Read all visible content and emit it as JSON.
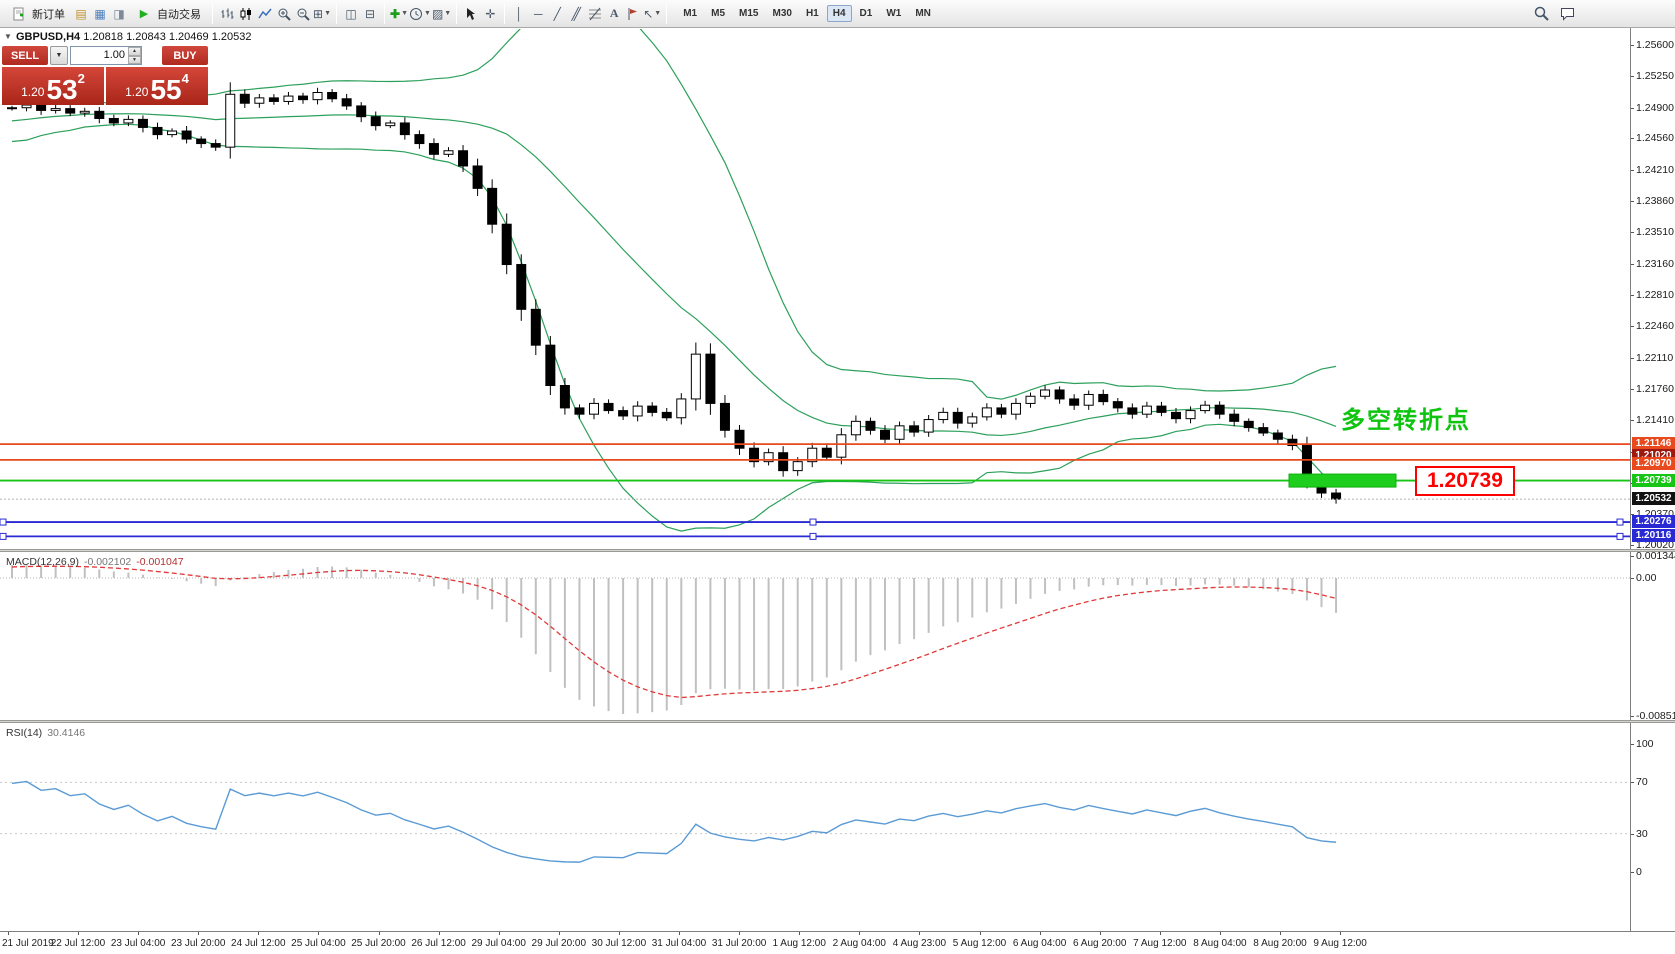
{
  "toolbar": {
    "new_order_label": "新订单",
    "autotrading_label": "自动交易",
    "text_tool_label": "A",
    "timeframes": [
      "M1",
      "M5",
      "M15",
      "M30",
      "H1",
      "H4",
      "D1",
      "W1",
      "MN"
    ],
    "active_timeframe": "H4"
  },
  "symbol_header": {
    "symbol": "GBPUSD,H4",
    "ohlc": "1.20818 1.20843 1.20469 1.20532"
  },
  "one_click": {
    "sell_label": "SELL",
    "buy_label": "BUY",
    "volume": "1.00",
    "sell_price": {
      "frac": "1.20",
      "big": "53",
      "sup": "2"
    },
    "buy_price": {
      "frac": "1.20",
      "big": "55",
      "sup": "4"
    }
  },
  "annotations": {
    "turning_point": "多空转折点",
    "level_label": "1.20739"
  },
  "price_axis": {
    "gridlines": [
      "1.25600",
      "1.25250",
      "1.24900",
      "1.24560",
      "1.24210",
      "1.23860",
      "1.23510",
      "1.23160",
      "1.22810",
      "1.22460",
      "1.22110",
      "1.21760",
      "1.21410",
      "1.21060",
      "1.20710",
      "1.20370",
      "1.20020"
    ],
    "tags": [
      {
        "text": "1.21146",
        "bg": "#e8491d"
      },
      {
        "text": "1.21020",
        "bg": "#9e1a10"
      },
      {
        "text": "1.20970",
        "bg": "#e8491d"
      },
      {
        "text": "1.20739",
        "bg": "#17c517"
      },
      {
        "text": "1.20532",
        "bg": "#111111"
      },
      {
        "text": "1.20276",
        "bg": "#2a2ad4"
      },
      {
        "text": "1.20116",
        "bg": "#2a2ad4"
      }
    ]
  },
  "indicator_macd": {
    "name": "MACD(12,26,9)",
    "value_main": "-0.002102",
    "value_signal": "-0.001047",
    "scale": [
      "0.001344",
      "0.00",
      "-0.00851"
    ]
  },
  "indicator_rsi": {
    "name": "RSI(14)",
    "value": "30.4146",
    "scale": [
      "100",
      "70",
      "30",
      "0"
    ]
  },
  "time_axis": {
    "labels": [
      "21 Jul 2019",
      "22 Jul 12:00",
      "23 Jul 04:00",
      "23 Jul 20:00",
      "24 Jul 12:00",
      "25 Jul 04:00",
      "25 Jul 20:00",
      "26 Jul 12:00",
      "29 Jul 04:00",
      "29 Jul 20:00",
      "30 Jul 12:00",
      "31 Jul 04:00",
      "31 Jul 20:00",
      "1 Aug 12:00",
      "2 Aug 04:00",
      "4 Aug 23:00",
      "5 Aug 12:00",
      "6 Aug 04:00",
      "6 Aug 20:00",
      "7 Aug 12:00",
      "8 Aug 04:00",
      "8 Aug 20:00",
      "9 Aug 12:00"
    ]
  },
  "chart_data": {
    "type": "candlestick",
    "symbol": "GBPUSD",
    "timeframe": "H4",
    "price_base": 1.2,
    "pre_closes_pips": [
      455,
      460,
      450,
      458,
      465,
      462,
      470,
      468,
      475,
      472,
      478,
      480,
      476,
      482,
      485,
      483,
      487,
      490,
      486,
      489
    ],
    "closes_pips": [
      490,
      493,
      487,
      489,
      484,
      486,
      478,
      473,
      477,
      468,
      460,
      464,
      455,
      450,
      446,
      505,
      495,
      501,
      497,
      503,
      499,
      507,
      500,
      492,
      480,
      470,
      473,
      460,
      450,
      438,
      442,
      425,
      400,
      360,
      315,
      265,
      225,
      180,
      155,
      148,
      160,
      152,
      146,
      157,
      150,
      144,
      165,
      215,
      160,
      130,
      110,
      95,
      105,
      85,
      95,
      110,
      100,
      125,
      140,
      130,
      120,
      135,
      128,
      142,
      150,
      138,
      145,
      155,
      148,
      160,
      168,
      175,
      165,
      158,
      170,
      162,
      155,
      148,
      157,
      150,
      143,
      152,
      158,
      148,
      140,
      133,
      127,
      120,
      113,
      75,
      60,
      53.2
    ],
    "indicators": {
      "bollinger": {
        "period": 20,
        "deviation": 2,
        "color": "#2ca05a"
      },
      "macd": {
        "fast": 12,
        "slow": 26,
        "signal": 9,
        "histogram_color": "#c0c0c0",
        "signal_color": "#e03939"
      },
      "rsi": {
        "period": 14,
        "color": "#5b9bd5"
      }
    },
    "levels": [
      {
        "price": 1.21146,
        "color": "#e8491d"
      },
      {
        "price": 1.2097,
        "color": "#e8491d"
      },
      {
        "price": 1.20739,
        "color": "#17c517"
      },
      {
        "price": 1.20276,
        "color": "#2a2ad4",
        "handles": true
      },
      {
        "price": 1.20116,
        "color": "#2a2ad4",
        "handles": true
      }
    ],
    "bid": 1.20532,
    "highlight_rect": {
      "price": 1.20739,
      "color": "#1dce1d"
    }
  }
}
